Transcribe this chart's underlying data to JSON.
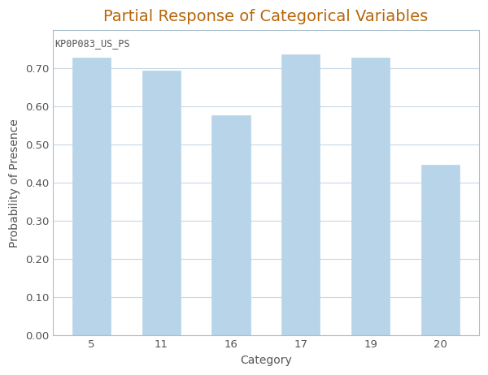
{
  "title": "Partial Response of Categorical Variables",
  "xlabel": "Category",
  "ylabel": "Probability of Presence",
  "categories": [
    "5",
    "11",
    "16",
    "17",
    "19",
    "20"
  ],
  "values": [
    0.728,
    0.695,
    0.578,
    0.737,
    0.728,
    0.448
  ],
  "bar_color": "#b8d4e8",
  "bar_edgecolor": "#b8d4e8",
  "annotation_text": "KP0P083_US_PS",
  "annotation_color": "#555555",
  "annotation_fontsize": 8.5,
  "title_fontsize": 14,
  "title_color": "#b8660a",
  "axis_label_fontsize": 10,
  "axis_label_color": "#555555",
  "tick_fontsize": 9.5,
  "tick_color": "#555555",
  "ylim": [
    0,
    0.8
  ],
  "yticks": [
    0.0,
    0.1,
    0.2,
    0.3,
    0.4,
    0.5,
    0.6,
    0.7
  ],
  "grid_color": "#c8d8e4",
  "background_color": "#ffffff",
  "plot_bg_color": "#ffffff",
  "spine_color": "#aabfcc",
  "bar_width": 0.55
}
